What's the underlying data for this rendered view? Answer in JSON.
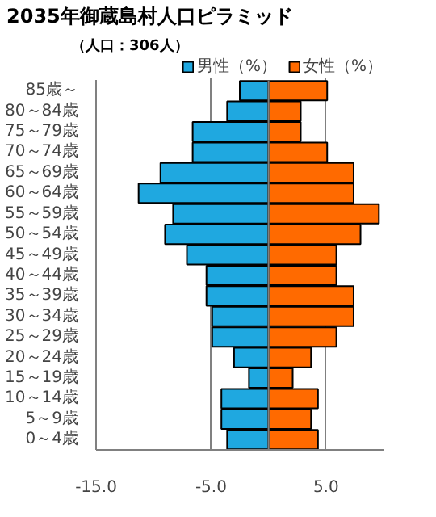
{
  "chart_data": {
    "type": "bar",
    "orientation": "horizontal",
    "stacked": true,
    "title": "2035年御蔵島村人口ピラミッド",
    "subtitle": "（人口：306人）",
    "categories": [
      "85歳～",
      "80～84歳",
      "75～79歳",
      "70～74歳",
      "65～69歳",
      "60～64歳",
      "55～59歳",
      "50～54歳",
      "45～49歳",
      "40～44歳",
      "35～39歳",
      "30～34歳",
      "25～29歳",
      "20～24歳",
      "15～19歳",
      "10～14歳",
      "5～9歳",
      "0～4歳"
    ],
    "series": [
      {
        "name": "男性（%）",
        "color": "#1fa8e0",
        "values": [
          -2.5,
          -3.6,
          -6.6,
          -6.6,
          -9.4,
          -11.3,
          -8.3,
          -9.0,
          -7.1,
          -5.4,
          -5.4,
          -4.9,
          -4.9,
          -3.0,
          -1.7,
          -4.1,
          -4.1,
          -3.6
        ]
      },
      {
        "name": "女性（%）",
        "color": "#ff6a00",
        "values": [
          5.1,
          2.8,
          2.8,
          5.1,
          7.4,
          7.4,
          9.6,
          8.0,
          5.9,
          5.9,
          7.4,
          7.4,
          5.9,
          3.7,
          2.1,
          4.3,
          3.7,
          4.3
        ]
      }
    ],
    "xlim": [
      -15,
      10
    ],
    "xticks": [
      {
        "value": -15,
        "label": "-15.0"
      },
      {
        "value": -5,
        "label": "-5.0"
      },
      {
        "value": 5,
        "label": "5.0"
      }
    ],
    "ref_lines": [
      {
        "axis": "x",
        "value": 0,
        "label": null,
        "color": "#808080"
      }
    ],
    "grid": "x",
    "legend": "top right"
  }
}
